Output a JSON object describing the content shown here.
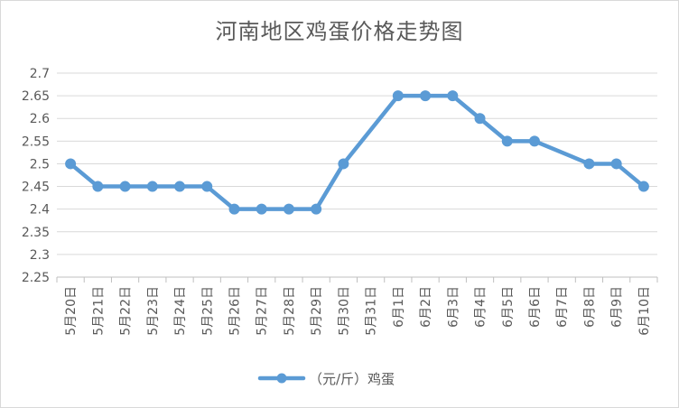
{
  "chart_data": {
    "type": "line",
    "title": "河南地区鸡蛋价格走势图",
    "categories": [
      "5月20日",
      "5月21日",
      "5月22日",
      "5月23日",
      "5月24日",
      "5月25日",
      "5月26日",
      "5月27日",
      "5月28日",
      "5月29日",
      "5月30日",
      "5月31日",
      "6月1日",
      "6月2日",
      "6月3日",
      "6月4日",
      "6月5日",
      "6月6日",
      "6月7日",
      "6月8日",
      "6月9日",
      "6月10日"
    ],
    "series": [
      {
        "name": "（元/斤）鸡蛋",
        "values": [
          2.5,
          2.45,
          2.45,
          2.45,
          2.45,
          2.45,
          2.4,
          2.4,
          2.4,
          2.4,
          2.5,
          null,
          2.65,
          2.65,
          2.65,
          2.6,
          2.55,
          2.55,
          null,
          2.5,
          2.5,
          2.45
        ],
        "color": "#5b9bd5"
      }
    ],
    "ylim": [
      2.25,
      2.7
    ],
    "ystep": 0.05,
    "y_tick_labels": [
      "2.25",
      "2.3",
      "2.35",
      "2.4",
      "2.45",
      "2.5",
      "2.55",
      "2.6",
      "2.65",
      "2.7"
    ],
    "grid": true,
    "legend_position": "bottom",
    "gridline_color": "#d9d9d9",
    "axis_color": "#bfbfbf"
  }
}
